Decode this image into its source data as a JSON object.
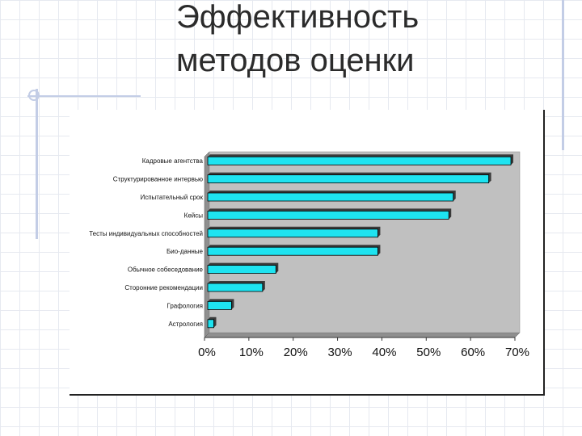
{
  "slide": {
    "title_line1": "Эффективность",
    "title_line2": "методов оценки"
  },
  "colors": {
    "bar_fill": "#1ee3f0",
    "bar_stroke": "#000000",
    "bar_shadow": "#3a3a3a",
    "plot_bg": "#c0c0c0",
    "decoration": "#c3cde6"
  },
  "chart_data": {
    "type": "bar",
    "orientation": "horizontal",
    "categories": [
      "Кадровые агентства",
      "Структурированное интервью",
      "Испытательный срок",
      "Кейсы",
      "Тесты индивидуальных способностей",
      "Био-данные",
      "Обычное собеседование",
      "Сторонние рекомендации",
      "Графология",
      "Астрология"
    ],
    "values": [
      68,
      63,
      55,
      54,
      38,
      38,
      15,
      12,
      5,
      1
    ],
    "xlim": [
      0,
      70
    ],
    "x_ticks": [
      "0%",
      "10%",
      "20%",
      "30%",
      "40%",
      "50%",
      "60%",
      "70%"
    ],
    "grid": false,
    "legend": "none"
  }
}
